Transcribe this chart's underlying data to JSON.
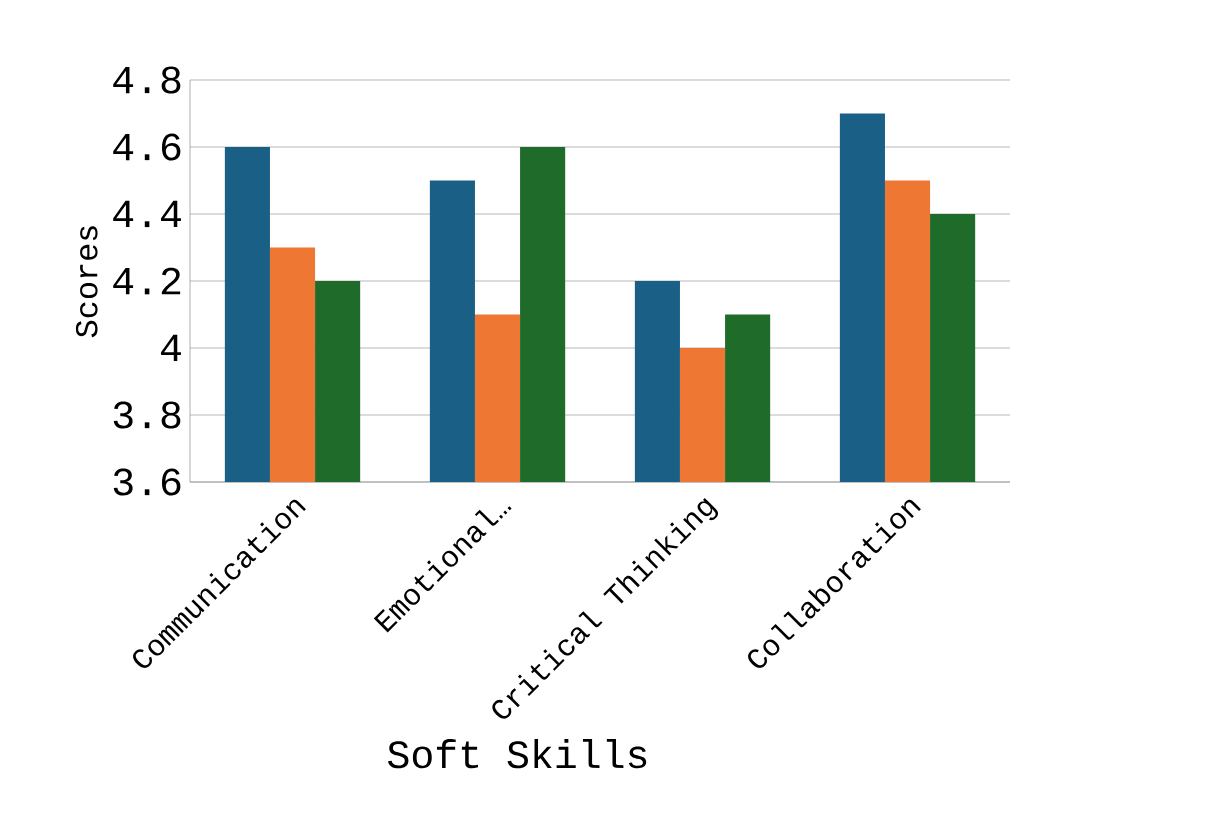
{
  "chart_data": {
    "type": "bar",
    "xlabel": "Soft Skills",
    "ylabel": "Scores",
    "categories": [
      "Communication",
      "Emotional…",
      "Critical Thinking",
      "Collaboration"
    ],
    "series": [
      {
        "color": "#1a5f85",
        "values": [
          4.6,
          4.5,
          4.2,
          4.7
        ]
      },
      {
        "color": "#ee7733",
        "values": [
          4.3,
          4.1,
          4.0,
          4.5
        ]
      },
      {
        "color": "#1e6b2a",
        "values": [
          4.2,
          4.6,
          4.1,
          4.4
        ]
      }
    ],
    "ylim": [
      3.6,
      4.8
    ],
    "yticks": [
      3.6,
      3.8,
      4,
      4.2,
      4.4,
      4.6,
      4.8
    ],
    "grid": "y"
  }
}
